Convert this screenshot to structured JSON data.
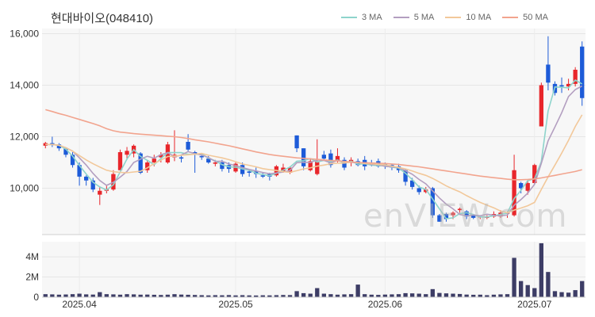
{
  "title": "현대바이오(048410)",
  "watermark": "enVIEW.com",
  "colors": {
    "up": "#e8262b",
    "down": "#1d5bd8",
    "volume": "#3d3d66",
    "ma3": "#8ed4cc",
    "ma5": "#b39ec0",
    "ma10": "#f2c89a",
    "ma50": "#f2a48e"
  },
  "chart_data": {
    "type": "candlestick",
    "title": "현대바이오(048410)",
    "legend": [
      {
        "name": "3 MA",
        "color": "#8ed4cc"
      },
      {
        "name": "5 MA",
        "color": "#b39ec0"
      },
      {
        "name": "10 MA",
        "color": "#f2c89a"
      },
      {
        "name": "50 MA",
        "color": "#f2a48e"
      }
    ],
    "price_axis": {
      "ylim": [
        8200,
        16200
      ],
      "ticks": [
        10000,
        12000,
        14000,
        16000
      ],
      "tick_labels": [
        "10,000",
        "12,000",
        "14,000",
        "16,000"
      ]
    },
    "volume_axis": {
      "ylim": [
        0,
        5500000
      ],
      "ticks": [
        0,
        2000000,
        4000000
      ],
      "tick_labels": [
        "0",
        "2M",
        "4M"
      ]
    },
    "x_labels": [
      {
        "label": "2025.04",
        "index": 5
      },
      {
        "label": "2025.05",
        "index": 28
      },
      {
        "label": "2025.06",
        "index": 50
      },
      {
        "label": "2025.07",
        "index": 72
      }
    ],
    "candles": [
      [
        11650,
        11750,
        11550,
        11800
      ],
      [
        11750,
        11700,
        11600,
        12000
      ],
      [
        11700,
        11550,
        11450,
        11750
      ],
      [
        11550,
        11300,
        11200,
        11600
      ],
      [
        11300,
        10900,
        10800,
        11400
      ],
      [
        10900,
        10450,
        10100,
        11000
      ],
      [
        10450,
        10300,
        10100,
        10500
      ],
      [
        10300,
        9950,
        9850,
        10400
      ],
      [
        9750,
        9900,
        9350,
        10050
      ],
      [
        9900,
        9950,
        9800,
        10100
      ],
      [
        9950,
        10550,
        9900,
        10700
      ],
      [
        10700,
        11400,
        10700,
        11500
      ],
      [
        11300,
        11450,
        11100,
        11600
      ],
      [
        11350,
        11650,
        11200,
        11700
      ],
      [
        11350,
        10600,
        10550,
        11400
      ],
      [
        10700,
        11000,
        10600,
        11100
      ],
      [
        11000,
        11150,
        10850,
        11300
      ],
      [
        11200,
        11300,
        11000,
        11400
      ],
      [
        11000,
        11700,
        10950,
        11800
      ],
      [
        11200,
        11300,
        11050,
        12250
      ],
      [
        11200,
        11150,
        11000,
        11300
      ],
      [
        11800,
        11500,
        11400,
        12100
      ],
      [
        11400,
        11300,
        10600,
        11450
      ],
      [
        11250,
        11200,
        11100,
        11350
      ],
      [
        11150,
        11000,
        10950,
        11250
      ],
      [
        10950,
        11000,
        10850,
        11100
      ],
      [
        11000,
        10750,
        10650,
        11100
      ],
      [
        10900,
        10750,
        10600,
        11000
      ],
      [
        10650,
        10950,
        10600,
        11000
      ],
      [
        10900,
        10550,
        10450,
        11000
      ],
      [
        10650,
        10600,
        10450,
        10700
      ],
      [
        10650,
        10550,
        10400,
        10800
      ],
      [
        10500,
        10450,
        10400,
        10600
      ],
      [
        10550,
        10450,
        10300,
        10600
      ],
      [
        10500,
        10850,
        10450,
        10900
      ],
      [
        10650,
        10800,
        10600,
        10950
      ],
      [
        10600,
        10800,
        10550,
        10850
      ],
      [
        12050,
        11550,
        11400,
        12050
      ],
      [
        11550,
        10850,
        10700,
        11550
      ],
      [
        10700,
        11050,
        10650,
        11150
      ],
      [
        10550,
        11050,
        10500,
        11900
      ],
      [
        11300,
        11150,
        11100,
        11450
      ],
      [
        11350,
        10900,
        10800,
        11500
      ],
      [
        11050,
        11250,
        11000,
        11550
      ],
      [
        11100,
        10800,
        10700,
        11200
      ],
      [
        11000,
        11100,
        10850,
        11200
      ],
      [
        11050,
        10900,
        10850,
        11150
      ],
      [
        11100,
        10850,
        10700,
        11250
      ],
      [
        11000,
        10950,
        10850,
        11100
      ],
      [
        11050,
        10850,
        10800,
        11150
      ],
      [
        10950,
        10850,
        10750,
        11000
      ],
      [
        10900,
        10800,
        10700,
        10950
      ],
      [
        10850,
        10700,
        10600,
        10950
      ],
      [
        10700,
        10250,
        10100,
        10750
      ],
      [
        10300,
        10050,
        9950,
        10400
      ],
      [
        10000,
        9850,
        9750,
        10100
      ],
      [
        9850,
        9950,
        9800,
        10050
      ],
      [
        10000,
        8950,
        8850,
        10050
      ],
      [
        8950,
        8700,
        8700,
        9000
      ],
      [
        9000,
        8800,
        8700,
        9050
      ],
      [
        8950,
        9050,
        8800,
        9100
      ],
      [
        9150,
        9200,
        9050,
        9250
      ],
      [
        9100,
        8900,
        8800,
        9150
      ],
      [
        8950,
        8850,
        8800,
        9000
      ],
      [
        8900,
        8900,
        8800,
        8950
      ],
      [
        8850,
        8900,
        8800,
        8950
      ],
      [
        8900,
        9000,
        8850,
        9100
      ],
      [
        8900,
        9050,
        8850,
        9150
      ],
      [
        9000,
        9050,
        8850,
        9100
      ],
      [
        8950,
        10700,
        8900,
        11300
      ],
      [
        10200,
        10000,
        9800,
        10250
      ],
      [
        9900,
        10200,
        9750,
        10300
      ],
      [
        10200,
        10900,
        10150,
        10950
      ],
      [
        12400,
        14000,
        12400,
        14100
      ],
      [
        14800,
        14100,
        13800,
        15900
      ],
      [
        14050,
        13700,
        13600,
        14150
      ],
      [
        14000,
        13950,
        13700,
        14300
      ],
      [
        13950,
        14050,
        13800,
        14250
      ],
      [
        14050,
        14600,
        13950,
        14700
      ],
      [
        15500,
        13500,
        13200,
        15700
      ]
    ],
    "volume": [
      300000,
      280000,
      250000,
      270000,
      300000,
      350000,
      280000,
      260000,
      500000,
      300000,
      280000,
      250000,
      300000,
      280000,
      250000,
      260000,
      240000,
      220000,
      250000,
      300000,
      260000,
      240000,
      220000,
      200000,
      180000,
      200000,
      190000,
      210000,
      180000,
      200000,
      180000,
      170000,
      190000,
      180000,
      200000,
      220000,
      210000,
      600000,
      400000,
      350000,
      900000,
      350000,
      300000,
      250000,
      280000,
      300000,
      1250000,
      300000,
      250000,
      230000,
      260000,
      280000,
      300000,
      400000,
      380000,
      350000,
      300000,
      800000,
      420000,
      380000,
      350000,
      320000,
      260000,
      240000,
      250000,
      200000,
      250000,
      280000,
      300000,
      3900000,
      1600000,
      1200000,
      900000,
      5350000,
      2500000,
      600000,
      500000,
      450000,
      700000,
      1600000
    ],
    "ma": {
      "ma3": [
        11700,
        11700,
        11667,
        11517,
        11250,
        10883,
        10550,
        10233,
        10050,
        9933,
        10133,
        10633,
        11133,
        11500,
        11233,
        11083,
        10917,
        11150,
        11383,
        11383,
        11383,
        11317,
        11317,
        11333,
        11167,
        11067,
        10917,
        10833,
        10817,
        10750,
        10700,
        10583,
        10533,
        10483,
        10583,
        10700,
        10817,
        11050,
        11067,
        11150,
        11017,
        11083,
        11033,
        11100,
        10983,
        11050,
        10933,
        10950,
        10900,
        10883,
        10867,
        10817,
        10783,
        10583,
        10333,
        10050,
        9950,
        9583,
        9200,
        8817,
        8850,
        9017,
        9050,
        8983,
        8883,
        8883,
        8933,
        8983,
        9033,
        9600,
        9917,
        10300,
        10367,
        11033,
        13000,
        13933,
        13917,
        13900,
        14200,
        14050
      ],
      "ma5": [
        11700,
        11700,
        11667,
        11575,
        11440,
        11180,
        10900,
        10580,
        10300,
        10110,
        10230,
        10430,
        10650,
        11000,
        11130,
        11240,
        11170,
        11300,
        11380,
        11220,
        11290,
        11420,
        11340,
        11290,
        11190,
        11040,
        11050,
        10940,
        10880,
        10800,
        10730,
        10670,
        10610,
        10560,
        10590,
        10630,
        10690,
        10990,
        11010,
        11000,
        11100,
        11080,
        10980,
        11080,
        11030,
        11000,
        10990,
        10990,
        10920,
        10920,
        10850,
        10830,
        10800,
        10680,
        10540,
        10340,
        10170,
        9900,
        9620,
        9380,
        9200,
        8980,
        8930,
        8960,
        8930,
        8990,
        8950,
        8930,
        8960,
        9340,
        9560,
        9810,
        10150,
        10960,
        11840,
        12380,
        12930,
        13560,
        13830,
        13970
      ],
      "ma10": [
        11700,
        11700,
        11667,
        11575,
        11440,
        11267,
        11100,
        10950,
        10820,
        10700,
        10640,
        10620,
        10600,
        10630,
        10660,
        10790,
        10960,
        11090,
        11230,
        11250,
        11280,
        11300,
        11320,
        11350,
        11280,
        11230,
        11180,
        11110,
        11030,
        10940,
        10890,
        10830,
        10760,
        10720,
        10690,
        10640,
        10620,
        10680,
        10750,
        10790,
        10860,
        10900,
        10950,
        10970,
        10980,
        11020,
        11000,
        10960,
        10950,
        10920,
        10910,
        10860,
        10810,
        10750,
        10670,
        10580,
        10500,
        10380,
        10240,
        10090,
        9970,
        9860,
        9710,
        9580,
        9450,
        9340,
        9240,
        9110,
        9050,
        9150,
        9230,
        9320,
        9450,
        9950,
        10440,
        10900,
        11360,
        11860,
        12400,
        12850
      ],
      "ma50": [
        13050,
        12980,
        12900,
        12830,
        12750,
        12670,
        12590,
        12510,
        12420,
        12310,
        12230,
        12180,
        12150,
        12120,
        12100,
        12080,
        12060,
        12040,
        12020,
        12000,
        11970,
        11930,
        11880,
        11840,
        11800,
        11750,
        11700,
        11650,
        11590,
        11530,
        11470,
        11410,
        11360,
        11310,
        11270,
        11240,
        11210,
        11180,
        11160,
        11140,
        11120,
        11100,
        11080,
        11060,
        11040,
        11020,
        11000,
        10990,
        10980,
        10970,
        10960,
        10940,
        10920,
        10890,
        10860,
        10830,
        10790,
        10750,
        10710,
        10670,
        10630,
        10590,
        10550,
        10510,
        10470,
        10440,
        10410,
        10380,
        10350,
        10330,
        10330,
        10340,
        10360,
        10400,
        10450,
        10500,
        10550,
        10600,
        10650,
        10720
      ]
    }
  }
}
